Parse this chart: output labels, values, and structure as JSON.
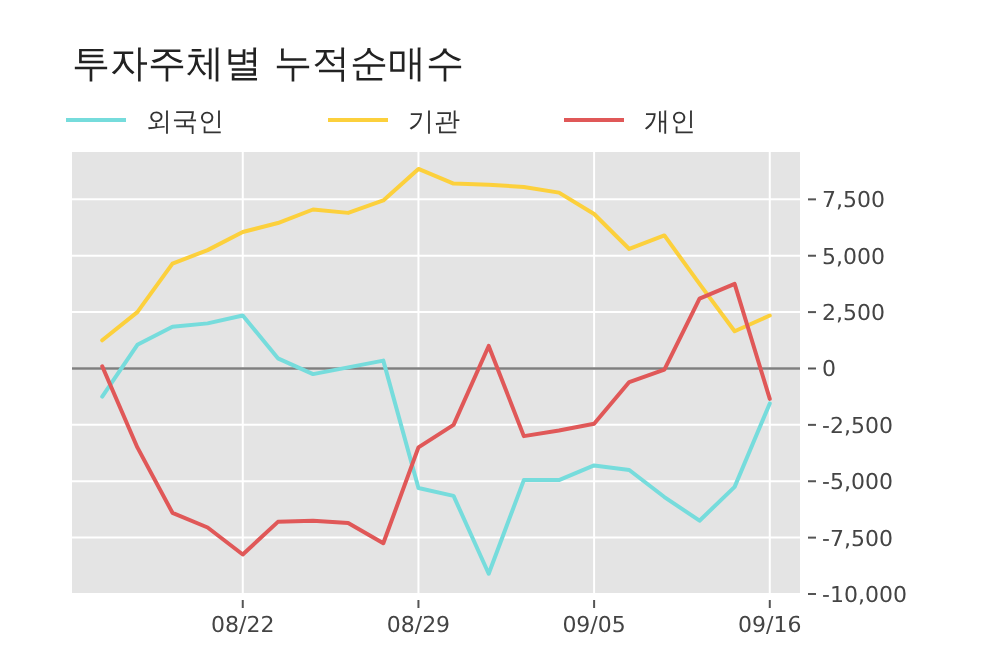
{
  "chart_data": {
    "type": "line",
    "title": "투자주체별 누적순매수",
    "categories": [
      null,
      null,
      null,
      null,
      "08/22",
      null,
      null,
      null,
      null,
      "08/29",
      null,
      null,
      null,
      null,
      "09/05",
      null,
      null,
      null,
      null,
      "09/16"
    ],
    "series": [
      {
        "name": "외국인",
        "color": "#76dcdc",
        "values": [
          -1250,
          1050,
          1850,
          2000,
          2350,
          450,
          -250,
          50,
          350,
          -5300,
          -5650,
          -9100,
          -4950,
          -4950,
          -4300,
          -4500,
          -5700,
          -6750,
          -5250,
          -1550
        ]
      },
      {
        "name": "기관",
        "color": "#fcd03c",
        "values": [
          1250,
          2500,
          4650,
          5250,
          6050,
          6450,
          7050,
          6900,
          7450,
          8850,
          8200,
          8150,
          8050,
          7800,
          6850,
          5300,
          5900,
          3750,
          1650,
          2350
        ]
      },
      {
        "name": "개인",
        "color": "#e05858",
        "values": [
          100,
          -3500,
          -6400,
          -7050,
          -8250,
          -6800,
          -6750,
          -6850,
          -7750,
          -3500,
          -2500,
          1000,
          -3000,
          -2750,
          -2450,
          -600,
          -50,
          3100,
          3750,
          -1350
        ]
      }
    ],
    "ylim": [
      -10000,
      9600
    ],
    "yticks": [
      {
        "value": -10000,
        "label": "-10,000"
      },
      {
        "value": -7500,
        "label": "-7,500"
      },
      {
        "value": -5000,
        "label": "-5,000"
      },
      {
        "value": -2500,
        "label": "-2,500"
      },
      0,
      {
        "value": 2500,
        "label": "2,500"
      },
      {
        "value": 5000,
        "label": "5,000"
      },
      {
        "value": 7500,
        "label": "7,500"
      }
    ],
    "ref_lines": [
      {
        "axis": "y",
        "value": 0,
        "color": "#7f7f7f"
      }
    ],
    "grid": true,
    "legend": "top",
    "marker": "none",
    "line_style": "solid"
  }
}
